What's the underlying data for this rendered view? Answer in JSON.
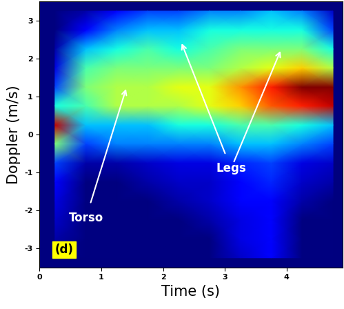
{
  "chart_data": {
    "type": "heatmap",
    "xlabel": "Time (s)",
    "ylabel": "Doppler (m/s)",
    "x": [
      0.25,
      0.75,
      1.25,
      1.75,
      2.25,
      2.75,
      3.25,
      3.75,
      4.25,
      4.75
    ],
    "y": [
      -3.25,
      -2.75,
      -2.25,
      -1.75,
      -1.25,
      -0.75,
      -0.25,
      0.25,
      0.75,
      1.25,
      1.75,
      2.25,
      2.75,
      3.25
    ],
    "cells": [
      [
        0.05,
        0.05,
        0.05,
        0.05,
        0.05,
        0.05,
        0.1,
        0.15,
        0.05,
        0.05
      ],
      [
        0.08,
        0.05,
        0.05,
        0.05,
        0.05,
        0.05,
        0.12,
        0.15,
        0.05,
        0.05
      ],
      [
        0.1,
        0.05,
        0.05,
        0.05,
        0.05,
        0.08,
        0.12,
        0.15,
        0.05,
        0.05
      ],
      [
        0.12,
        0.05,
        0.05,
        0.05,
        0.08,
        0.1,
        0.15,
        0.15,
        0.08,
        0.05
      ],
      [
        0.15,
        0.05,
        0.05,
        0.08,
        0.1,
        0.1,
        0.15,
        0.18,
        0.1,
        0.08
      ],
      [
        0.2,
        0.08,
        0.08,
        0.1,
        0.12,
        0.12,
        0.18,
        0.2,
        0.12,
        0.1
      ],
      [
        0.45,
        0.2,
        0.25,
        0.25,
        0.25,
        0.25,
        0.3,
        0.3,
        0.25,
        0.2
      ],
      [
        0.8,
        0.3,
        0.3,
        0.3,
        0.35,
        0.35,
        0.4,
        0.4,
        0.35,
        0.3
      ],
      [
        0.35,
        0.4,
        0.5,
        0.5,
        0.5,
        0.55,
        0.6,
        0.7,
        0.75,
        0.8
      ],
      [
        0.2,
        0.45,
        0.5,
        0.5,
        0.55,
        0.55,
        0.65,
        0.75,
        0.85,
        0.85
      ],
      [
        0.12,
        0.4,
        0.45,
        0.45,
        0.45,
        0.45,
        0.5,
        0.55,
        0.6,
        0.5
      ],
      [
        0.08,
        0.3,
        0.35,
        0.4,
        0.35,
        0.4,
        0.45,
        0.45,
        0.45,
        0.35
      ],
      [
        0.05,
        0.15,
        0.25,
        0.3,
        0.3,
        0.35,
        0.35,
        0.35,
        0.35,
        0.2
      ],
      [
        0.05,
        0.08,
        0.15,
        0.2,
        0.2,
        0.25,
        0.25,
        0.3,
        0.25,
        0.1
      ]
    ],
    "xlim": [
      0,
      4.9
    ],
    "xticks": [
      0,
      1,
      2,
      3,
      4
    ],
    "ylim": [
      -3.5,
      3.5
    ],
    "yticks": [
      -3,
      -2,
      -1,
      0,
      1,
      2,
      3
    ],
    "grid": false,
    "annotations": [
      {
        "text": "Torso",
        "x": 0.75,
        "y": -2.2,
        "arrows": [
          [
            1.4,
            1.2
          ]
        ]
      },
      {
        "text": "Legs",
        "x": 3.1,
        "y": -0.9,
        "arrows": [
          [
            2.3,
            2.4
          ],
          [
            3.9,
            2.2
          ]
        ]
      },
      {
        "text": "(d)",
        "x": 0.4,
        "y": -3.2,
        "arrows": []
      }
    ]
  }
}
